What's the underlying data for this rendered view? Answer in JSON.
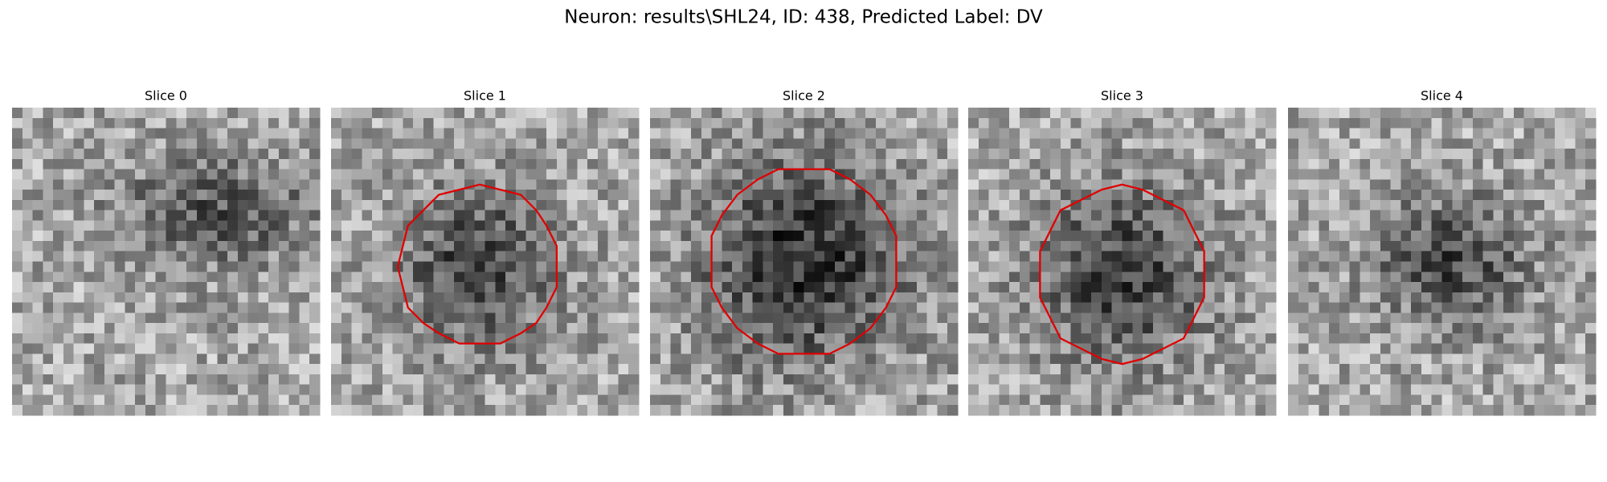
{
  "title": "Neuron: results\\SHL24, ID: 438, Predicted Label: DV",
  "panels": [
    {
      "title": "Slice 0"
    },
    {
      "title": "Slice 1"
    },
    {
      "title": "Slice 2"
    },
    {
      "title": "Slice 3"
    },
    {
      "title": "Slice 4"
    }
  ]
}
